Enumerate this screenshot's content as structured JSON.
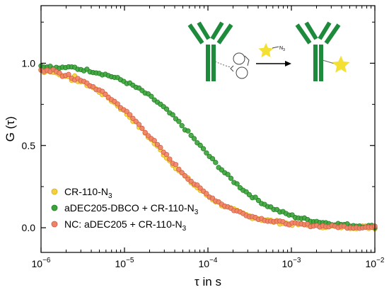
{
  "chart_data": {
    "type": "scatter",
    "xlabel": "τ in s",
    "ylabel": "G (τ)",
    "xscale": "log",
    "xlim": [
      1e-06,
      0.01
    ],
    "ylim": [
      -0.15,
      1.35
    ],
    "x_ticks": [
      {
        "value": 1e-06,
        "base": "10",
        "exp": "−6"
      },
      {
        "value": 1e-05,
        "base": "10",
        "exp": "−5"
      },
      {
        "value": 0.0001,
        "base": "10",
        "exp": "−4"
      },
      {
        "value": 0.001,
        "base": "10",
        "exp": "−3"
      },
      {
        "value": 0.01,
        "base": "10",
        "exp": "−2"
      }
    ],
    "y_ticks": [
      {
        "value": 0.0,
        "label": "0.0"
      },
      {
        "value": 0.5,
        "label": "0.5"
      },
      {
        "value": 1.0,
        "label": "1.0"
      }
    ],
    "legend_position": "bottom-left",
    "series": [
      {
        "label_main": "CR-110-N",
        "label_sub": "3",
        "label_tail": "",
        "color": "#f5cf3c",
        "stroke": "#d9ad15",
        "tau_d": 2.4e-05,
        "jitter": 0.01,
        "points": 110
      },
      {
        "label_main": "aDEC205-DBCO + CR-110-N",
        "label_sub": "3",
        "label_tail": "",
        "color": "#3aa43a",
        "stroke": "#1e7a1e",
        "tau_d": 8e-05,
        "jitter": 0.008,
        "points": 110
      },
      {
        "label_main": "NC: aDEC205 + CR-110-N",
        "label_sub": "3",
        "label_tail": "",
        "color": "#f0826a",
        "stroke": "#cf5a40",
        "tau_d": 2.5e-05,
        "jitter": 0.008,
        "points": 110
      }
    ],
    "inset": {
      "reagent_label": "N",
      "reagent_sub": "3",
      "antibody_color": "#1e8a3c",
      "dye_color": "#f3e032"
    }
  }
}
